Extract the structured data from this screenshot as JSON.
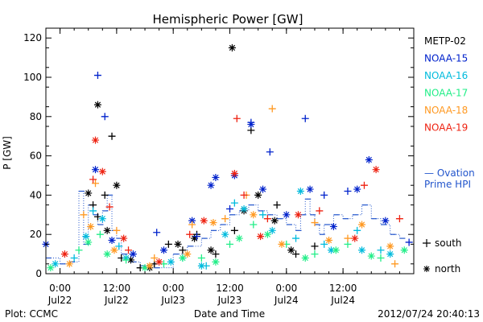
{
  "chart_data": {
    "type": "scatter",
    "title": "Hemispheric Power [GW]",
    "ylabel": "P [GW]",
    "xlabel": "Date and Time",
    "xlim": [
      "2012-07-21T21:00",
      "2012-07-25T03:00"
    ],
    "ylim": [
      0,
      125
    ],
    "yticks": [
      0,
      20,
      40,
      60,
      80,
      100,
      120
    ],
    "xticks": [
      {
        "time": "2012-07-22T00:00",
        "line1": "0:00",
        "line2": "Jul22"
      },
      {
        "time": "2012-07-22T12:00",
        "line1": "12:00",
        "line2": "Jul22"
      },
      {
        "time": "2012-07-23T00:00",
        "line1": "0:00",
        "line2": "Jul23"
      },
      {
        "time": "2012-07-23T12:00",
        "line1": "12:00",
        "line2": "Jul23"
      },
      {
        "time": "2012-07-24T00:00",
        "line1": "0:00",
        "line2": "Jul24"
      },
      {
        "time": "2012-07-24T12:00",
        "line1": "12:00",
        "line2": "Jul24"
      }
    ],
    "grid": false,
    "legend_position": "right",
    "markers": {
      "south": "+",
      "north": "*"
    },
    "series": [
      {
        "name": "METP-02",
        "color": "#000000",
        "south": [
          [
            "2012-07-22T07:00",
            35
          ],
          [
            "2012-07-22T08:00",
            29
          ],
          [
            "2012-07-22T09:30",
            40
          ],
          [
            "2012-07-22T11:00",
            70
          ],
          [
            "2012-07-22T13:00",
            8
          ],
          [
            "2012-07-22T17:00",
            3
          ],
          [
            "2012-07-22T20:00",
            5
          ],
          [
            "2012-07-22T23:00",
            15
          ],
          [
            "2012-07-23T02:00",
            12
          ],
          [
            "2012-07-23T05:00",
            20
          ],
          [
            "2012-07-23T09:00",
            10
          ],
          [
            "2012-07-23T13:00",
            22
          ],
          [
            "2012-07-23T16:30",
            73
          ],
          [
            "2012-07-23T22:00",
            35
          ],
          [
            "2012-07-24T02:00",
            10
          ],
          [
            "2012-07-24T06:00",
            14
          ]
        ],
        "north": [
          [
            "2012-07-22T06:00",
            41
          ],
          [
            "2012-07-22T08:00",
            86
          ],
          [
            "2012-07-22T10:00",
            22
          ],
          [
            "2012-07-22T12:00",
            45
          ],
          [
            "2012-07-22T15:00",
            7
          ],
          [
            "2012-07-22T19:00",
            3
          ],
          [
            "2012-07-23T01:00",
            15
          ],
          [
            "2012-07-23T04:30",
            18
          ],
          [
            "2012-07-23T08:00",
            12
          ],
          [
            "2012-07-23T12:30",
            115
          ],
          [
            "2012-07-23T15:00",
            32
          ],
          [
            "2012-07-23T18:00",
            40
          ],
          [
            "2012-07-23T21:30",
            27
          ],
          [
            "2012-07-24T01:00",
            12
          ]
        ]
      },
      {
        "name": "NOAA-15",
        "color": "#0022cc",
        "south": [
          [
            "2012-07-22T08:00",
            101
          ],
          [
            "2012-07-22T09:30",
            80
          ],
          [
            "2012-07-22T20:30",
            21
          ],
          [
            "2012-07-23T05:00",
            19
          ],
          [
            "2012-07-23T12:00",
            33
          ],
          [
            "2012-07-23T16:30",
            77
          ],
          [
            "2012-07-23T20:30",
            62
          ],
          [
            "2012-07-24T04:00",
            79
          ],
          [
            "2012-07-24T08:00",
            40
          ],
          [
            "2012-07-24T13:00",
            42
          ],
          [
            "2012-07-25T02:00",
            16
          ]
        ],
        "north": [
          [
            "2012-07-21T21:00",
            15
          ],
          [
            "2012-07-22T07:30",
            53
          ],
          [
            "2012-07-22T11:00",
            17
          ],
          [
            "2012-07-22T15:30",
            10
          ],
          [
            "2012-07-22T22:00",
            12
          ],
          [
            "2012-07-23T04:00",
            27
          ],
          [
            "2012-07-23T08:00",
            45
          ],
          [
            "2012-07-23T09:00",
            49
          ],
          [
            "2012-07-23T13:00",
            50
          ],
          [
            "2012-07-23T16:30",
            76
          ],
          [
            "2012-07-23T19:00",
            43
          ],
          [
            "2012-07-24T00:00",
            30
          ],
          [
            "2012-07-24T05:00",
            43
          ],
          [
            "2012-07-24T10:00",
            24
          ],
          [
            "2012-07-24T15:00",
            43
          ],
          [
            "2012-07-24T17:30",
            58
          ],
          [
            "2012-07-24T21:00",
            27
          ]
        ]
      },
      {
        "name": "NOAA-16",
        "color": "#00bbdd",
        "south": [
          [
            "2012-07-22T03:00",
            8
          ],
          [
            "2012-07-22T07:00",
            32
          ],
          [
            "2012-07-22T12:30",
            14
          ],
          [
            "2012-07-23T02:00",
            8
          ],
          [
            "2012-07-23T07:00",
            4
          ],
          [
            "2012-07-23T13:00",
            36
          ],
          [
            "2012-07-23T19:00",
            30
          ],
          [
            "2012-07-24T02:00",
            18
          ],
          [
            "2012-07-24T08:00",
            15
          ],
          [
            "2012-07-24T15:00",
            22
          ],
          [
            "2012-07-24T20:00",
            12
          ]
        ],
        "north": [
          [
            "2012-07-21T23:00",
            5
          ],
          [
            "2012-07-22T05:30",
            19
          ],
          [
            "2012-07-22T09:00",
            28
          ],
          [
            "2012-07-22T14:00",
            8
          ],
          [
            "2012-07-22T23:30",
            6
          ],
          [
            "2012-07-23T06:00",
            4
          ],
          [
            "2012-07-23T11:00",
            20
          ],
          [
            "2012-07-23T15:00",
            33
          ],
          [
            "2012-07-23T21:00",
            22
          ],
          [
            "2012-07-24T03:00",
            42
          ],
          [
            "2012-07-24T09:30",
            12
          ],
          [
            "2012-07-24T16:00",
            12
          ],
          [
            "2012-07-24T22:00",
            10
          ]
        ]
      },
      {
        "name": "NOAA-17",
        "color": "#22ee88",
        "south": [
          [
            "2012-07-22T04:00",
            12
          ],
          [
            "2012-07-22T08:30",
            20
          ],
          [
            "2012-07-22T14:00",
            7
          ],
          [
            "2012-07-22T22:00",
            5
          ],
          [
            "2012-07-23T06:00",
            8
          ],
          [
            "2012-07-23T12:00",
            15
          ],
          [
            "2012-07-23T17:00",
            25
          ],
          [
            "2012-07-24T00:00",
            15
          ],
          [
            "2012-07-24T06:00",
            10
          ],
          [
            "2012-07-24T13:00",
            15
          ],
          [
            "2012-07-24T20:00",
            8
          ]
        ],
        "north": [
          [
            "2012-07-21T22:00",
            3
          ],
          [
            "2012-07-22T06:00",
            16
          ],
          [
            "2012-07-22T10:00",
            10
          ],
          [
            "2012-07-22T18:00",
            3
          ],
          [
            "2012-07-23T02:00",
            8
          ],
          [
            "2012-07-23T09:00",
            6
          ],
          [
            "2012-07-23T14:00",
            18
          ],
          [
            "2012-07-23T20:00",
            20
          ],
          [
            "2012-07-24T04:00",
            8
          ],
          [
            "2012-07-24T10:30",
            12
          ],
          [
            "2012-07-24T18:00",
            9
          ],
          [
            "2012-07-25T01:00",
            12
          ]
        ]
      },
      {
        "name": "NOAA-18",
        "color": "#ff9922",
        "south": [
          [
            "2012-07-22T05:00",
            30
          ],
          [
            "2012-07-22T07:30",
            46
          ],
          [
            "2012-07-22T12:00",
            22
          ],
          [
            "2012-07-22T20:00",
            8
          ],
          [
            "2012-07-23T04:00",
            25
          ],
          [
            "2012-07-23T11:00",
            28
          ],
          [
            "2012-07-23T15:30",
            40
          ],
          [
            "2012-07-23T21:00",
            84
          ],
          [
            "2012-07-24T06:00",
            26
          ],
          [
            "2012-07-24T13:00",
            18
          ],
          [
            "2012-07-24T23:00",
            5
          ]
        ],
        "north": [
          [
            "2012-07-22T02:00",
            5
          ],
          [
            "2012-07-22T06:30",
            24
          ],
          [
            "2012-07-22T11:30",
            12
          ],
          [
            "2012-07-22T19:00",
            4
          ],
          [
            "2012-07-23T03:00",
            10
          ],
          [
            "2012-07-23T08:30",
            26
          ],
          [
            "2012-07-23T17:00",
            30
          ],
          [
            "2012-07-23T23:00",
            15
          ],
          [
            "2012-07-24T09:00",
            17
          ],
          [
            "2012-07-24T16:00",
            25
          ],
          [
            "2012-07-24T22:00",
            14
          ]
        ]
      },
      {
        "name": "NOAA-19",
        "color": "#ee2211",
        "south": [
          [
            "2012-07-22T07:00",
            48
          ],
          [
            "2012-07-22T10:30",
            34
          ],
          [
            "2012-07-22T14:30",
            12
          ],
          [
            "2012-07-23T03:30",
            20
          ],
          [
            "2012-07-23T13:30",
            79
          ],
          [
            "2012-07-23T15:00",
            40
          ],
          [
            "2012-07-23T20:00",
            28
          ],
          [
            "2012-07-24T07:00",
            32
          ],
          [
            "2012-07-24T16:30",
            45
          ],
          [
            "2012-07-25T00:00",
            28
          ]
        ],
        "north": [
          [
            "2012-07-22T01:00",
            10
          ],
          [
            "2012-07-22T07:30",
            68
          ],
          [
            "2012-07-22T09:00",
            52
          ],
          [
            "2012-07-22T13:30",
            18
          ],
          [
            "2012-07-22T21:00",
            6
          ],
          [
            "2012-07-23T06:30",
            27
          ],
          [
            "2012-07-23T13:00",
            51
          ],
          [
            "2012-07-23T18:30",
            19
          ],
          [
            "2012-07-24T02:30",
            30
          ],
          [
            "2012-07-24T14:30",
            18
          ],
          [
            "2012-07-24T19:00",
            53
          ]
        ]
      }
    ],
    "ovation": {
      "label_line1": "— Ovation",
      "label_line2": "Prime HPI",
      "color": "#2255cc",
      "points": [
        [
          "2012-07-21T21:00",
          8
        ],
        [
          "2012-07-22T00:00",
          5
        ],
        [
          "2012-07-22T02:00",
          6
        ],
        [
          "2012-07-22T04:00",
          42
        ],
        [
          "2012-07-22T05:00",
          15
        ],
        [
          "2012-07-22T06:00",
          35
        ],
        [
          "2012-07-22T07:00",
          30
        ],
        [
          "2012-07-22T08:00",
          25
        ],
        [
          "2012-07-22T09:00",
          32
        ],
        [
          "2012-07-22T10:00",
          40
        ],
        [
          "2012-07-22T11:00",
          22
        ],
        [
          "2012-07-22T12:00",
          18
        ],
        [
          "2012-07-22T13:00",
          10
        ],
        [
          "2012-07-22T15:00",
          6
        ],
        [
          "2012-07-22T17:00",
          4
        ],
        [
          "2012-07-22T20:00",
          3
        ],
        [
          "2012-07-23T00:00",
          10
        ],
        [
          "2012-07-23T03:00",
          14
        ],
        [
          "2012-07-23T06:00",
          18
        ],
        [
          "2012-07-23T08:00",
          22
        ],
        [
          "2012-07-23T10:00",
          25
        ],
        [
          "2012-07-23T12:00",
          30
        ],
        [
          "2012-07-23T14:00",
          32
        ],
        [
          "2012-07-23T16:00",
          35
        ],
        [
          "2012-07-23T18:00",
          32
        ],
        [
          "2012-07-23T20:00",
          30
        ],
        [
          "2012-07-23T22:00",
          28
        ],
        [
          "2012-07-24T00:00",
          25
        ],
        [
          "2012-07-24T02:00",
          22
        ],
        [
          "2012-07-24T03:00",
          30
        ],
        [
          "2012-07-24T04:00",
          38
        ],
        [
          "2012-07-24T05:00",
          30
        ],
        [
          "2012-07-24T06:00",
          25
        ],
        [
          "2012-07-24T07:00",
          20
        ],
        [
          "2012-07-24T08:00",
          25
        ],
        [
          "2012-07-24T10:00",
          30
        ],
        [
          "2012-07-24T12:00",
          28
        ],
        [
          "2012-07-24T14:00",
          30
        ],
        [
          "2012-07-24T16:00",
          35
        ],
        [
          "2012-07-24T18:00",
          28
        ],
        [
          "2012-07-24T20:00",
          25
        ],
        [
          "2012-07-24T22:00",
          20
        ],
        [
          "2012-07-25T00:00",
          18
        ]
      ]
    },
    "marker_legend": [
      {
        "symbol": "+",
        "label": "south"
      },
      {
        "symbol": "*",
        "label": "north"
      }
    ]
  },
  "footer": {
    "left": "Plot: CCMC",
    "right": "2012/07/24 20:40:13"
  }
}
